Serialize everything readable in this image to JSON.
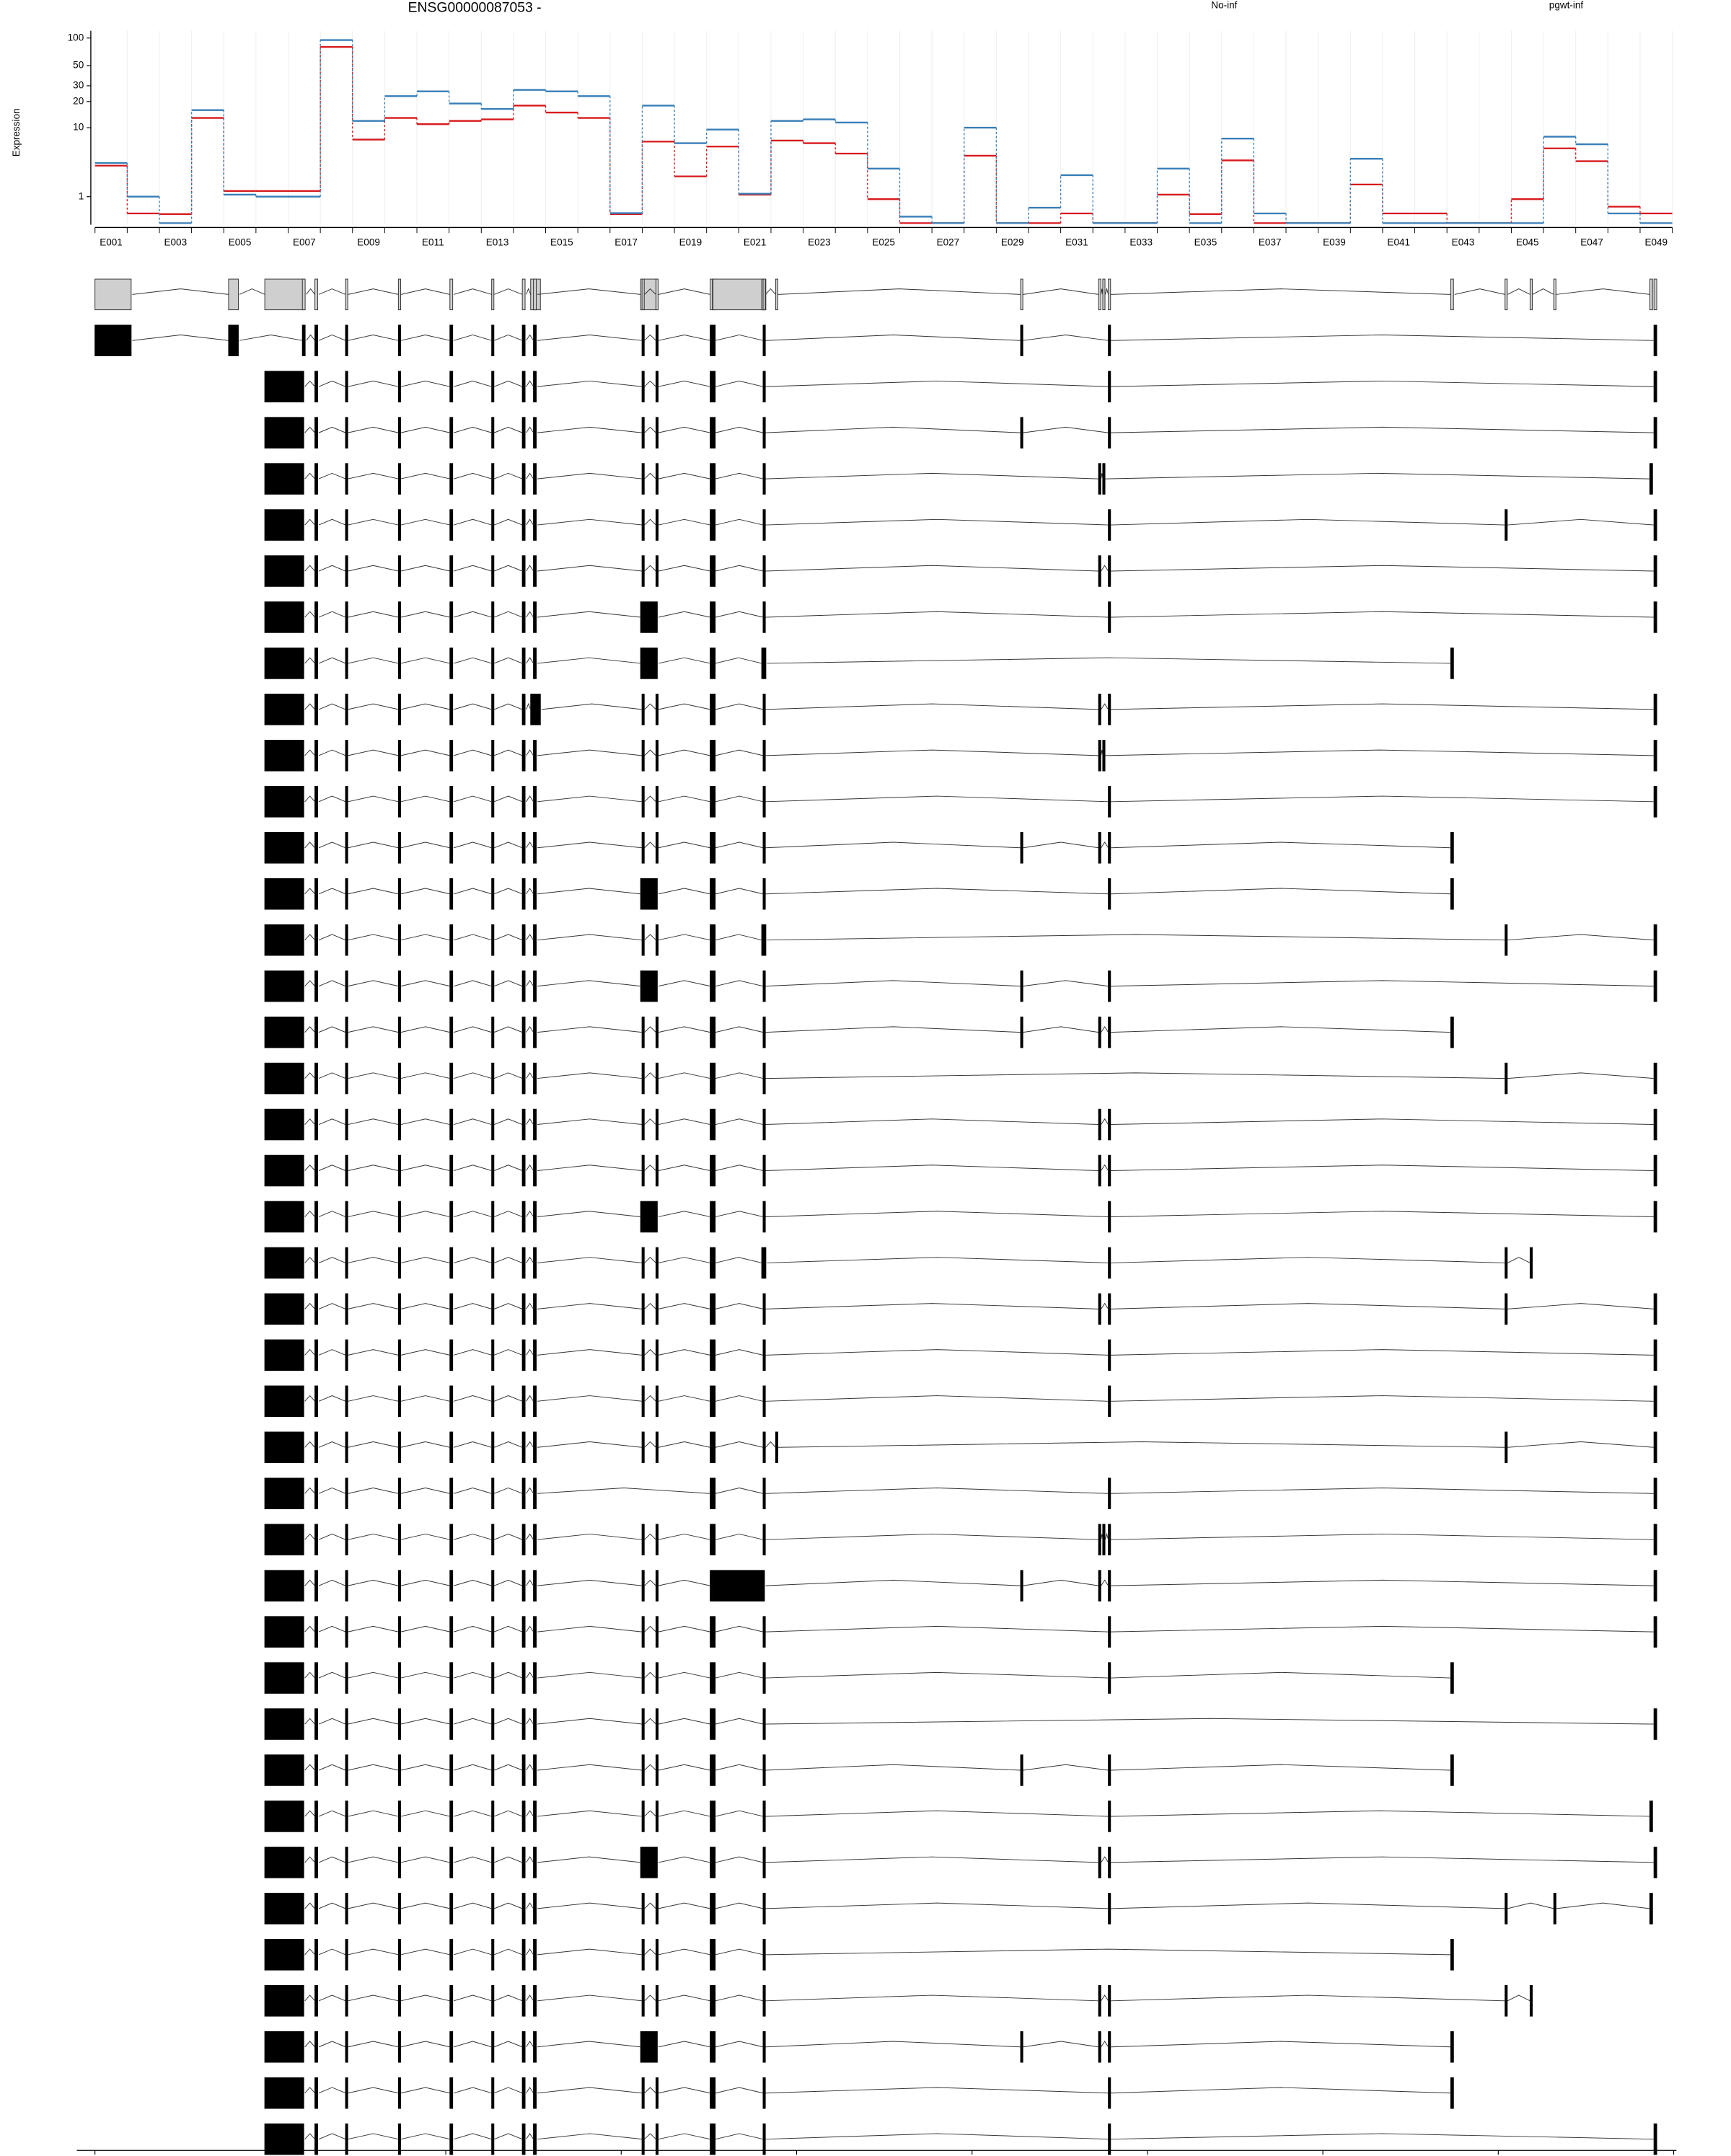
{
  "chart_data": {
    "type": "exon-usage",
    "title": "ENSG00000087053 -",
    "y_label": "Expression",
    "yscale": "log1p",
    "ylim": [
      0,
      120
    ],
    "yticks": [
      1,
      10,
      20,
      30,
      50,
      100
    ],
    "categories": [
      "E001",
      null,
      "E003",
      null,
      "E005",
      null,
      "E007",
      null,
      "E009",
      null,
      "E011",
      null,
      "E013",
      null,
      "E015",
      null,
      "E017",
      null,
      "E019",
      null,
      "E021",
      null,
      "E023",
      null,
      "E025",
      null,
      "E027",
      null,
      "E029",
      null,
      "E031",
      null,
      "E033",
      null,
      "E035",
      null,
      "E037",
      null,
      "E039",
      null,
      "E041",
      null,
      "E043",
      null,
      "E045",
      null,
      "E047",
      null,
      "E049"
    ],
    "series": [
      {
        "name": "No-inf",
        "color": "#d7191c",
        "values": [
          3.3,
          0.32,
          0.3,
          13,
          1.3,
          1.3,
          1.3,
          80,
          7.2,
          13,
          11,
          12,
          12.5,
          18,
          15,
          13,
          0.3,
          6.8,
          2.3,
          5.9,
          1.1,
          7,
          6.5,
          4.8,
          0.88,
          0.04,
          0.04,
          4.5,
          0.04,
          0.04,
          0.32,
          0.04,
          0.04,
          1.1,
          0.3,
          3.9,
          0.04,
          0.04,
          0.04,
          1.7,
          0.32,
          0.32,
          0.04,
          0.04,
          0.88,
          5.6,
          3.8,
          0.56,
          0.32
        ]
      },
      {
        "name": "pgwt-inf",
        "color": "#377eb8",
        "values": [
          3.6,
          1.0,
          0.04,
          16,
          1.1,
          1.0,
          1.0,
          95,
          12,
          23,
          26,
          19,
          16.5,
          27,
          26,
          23,
          0.33,
          18,
          6.5,
          9.5,
          1.15,
          12,
          12.5,
          11.5,
          3,
          0.22,
          0.04,
          10,
          0.04,
          0.52,
          2.4,
          0.04,
          0.04,
          3,
          0.04,
          7.4,
          0.32,
          0.04,
          0.04,
          4.1,
          0.04,
          0.04,
          0.04,
          0.04,
          0.04,
          7.8,
          6.3,
          0.32,
          0.04
        ]
      }
    ],
    "xlim": [
      95820579,
      95925498
    ],
    "xticks": [
      95821766,
      95833271,
      95844777,
      95856282,
      95867788,
      95879293,
      95890799,
      95902304,
      95913810,
      95925315
    ],
    "exons": [
      [
        95821766,
        95824140
      ],
      [
        95830531,
        95831170
      ],
      [
        95832905,
        95835461
      ],
      [
        95835370,
        95835553
      ],
      [
        95836191,
        95836374
      ],
      [
        95838200,
        95838290
      ],
      [
        95841669,
        95841760
      ],
      [
        95845047,
        95845230
      ],
      [
        95847786,
        95847878
      ],
      [
        95849795,
        95849978
      ],
      [
        95850526,
        95850710
      ],
      [
        95850344,
        95850983
      ],
      [
        95857647,
        95857738
      ],
      [
        95858560,
        95858651
      ],
      [
        95857556,
        95858651
      ],
      [
        95862119,
        95862210
      ],
      [
        95862302,
        95862393
      ],
      [
        95862302,
        95865680
      ],
      [
        95865589,
        95865680
      ],
      [
        95865498,
        95865771
      ],
      [
        95866410,
        95866500
      ],
      [
        95882480,
        95882570
      ],
      [
        95887593,
        95887684
      ],
      [
        95887867,
        95887958
      ],
      [
        95888232,
        95888323
      ],
      [
        95910692,
        95910874
      ],
      [
        95914253,
        95914344
      ],
      [
        95915896,
        95915987
      ],
      [
        95917448,
        95917539
      ],
      [
        95923748,
        95923930
      ],
      [
        95924022,
        95924204
      ]
    ],
    "transcripts": [
      [
        0,
        1,
        3,
        4,
        5,
        6,
        7,
        8,
        9,
        10,
        12,
        13,
        15,
        16,
        18,
        21,
        24,
        30
      ],
      [
        2,
        4,
        5,
        6,
        7,
        8,
        9,
        10,
        12,
        13,
        15,
        16,
        18,
        24,
        30
      ],
      [
        2,
        4,
        5,
        6,
        7,
        8,
        9,
        10,
        12,
        13,
        15,
        16,
        18,
        21,
        24,
        30
      ],
      [
        2,
        4,
        5,
        6,
        7,
        8,
        9,
        10,
        12,
        13,
        15,
        16,
        18,
        22,
        23,
        29
      ],
      [
        2,
        4,
        5,
        6,
        7,
        8,
        9,
        10,
        12,
        13,
        15,
        16,
        18,
        24,
        26,
        30
      ],
      [
        2,
        4,
        5,
        6,
        7,
        8,
        9,
        10,
        12,
        13,
        15,
        16,
        18,
        22,
        24,
        30
      ],
      [
        2,
        4,
        5,
        6,
        7,
        8,
        9,
        10,
        14,
        15,
        16,
        18,
        24,
        30
      ],
      [
        2,
        4,
        5,
        6,
        7,
        8,
        9,
        10,
        14,
        15,
        16,
        19,
        25
      ],
      [
        2,
        4,
        5,
        6,
        7,
        8,
        9,
        11,
        12,
        13,
        15,
        16,
        18,
        22,
        24,
        30
      ],
      [
        2,
        4,
        5,
        6,
        7,
        8,
        9,
        10,
        12,
        13,
        15,
        16,
        18,
        22,
        23,
        30
      ],
      [
        2,
        4,
        5,
        6,
        7,
        8,
        9,
        10,
        12,
        13,
        15,
        16,
        18,
        24,
        30
      ],
      [
        2,
        4,
        5,
        6,
        7,
        8,
        9,
        10,
        12,
        13,
        15,
        16,
        18,
        21,
        22,
        24,
        25
      ],
      [
        2,
        4,
        5,
        6,
        7,
        8,
        9,
        10,
        14,
        15,
        16,
        18,
        24,
        25
      ],
      [
        2,
        4,
        5,
        6,
        7,
        8,
        9,
        10,
        12,
        13,
        15,
        16,
        19,
        26,
        30
      ],
      [
        2,
        4,
        5,
        6,
        7,
        8,
        9,
        10,
        14,
        15,
        16,
        18,
        21,
        24,
        30
      ],
      [
        2,
        4,
        5,
        6,
        7,
        8,
        9,
        10,
        12,
        13,
        15,
        16,
        18,
        21,
        22,
        24,
        25
      ],
      [
        2,
        4,
        5,
        6,
        7,
        8,
        9,
        10,
        12,
        13,
        15,
        16,
        18,
        26,
        30
      ],
      [
        2,
        4,
        5,
        6,
        7,
        8,
        9,
        10,
        12,
        13,
        15,
        16,
        18,
        22,
        24,
        30
      ],
      [
        2,
        4,
        5,
        6,
        7,
        8,
        9,
        10,
        12,
        13,
        15,
        16,
        18,
        22,
        24,
        30
      ],
      [
        2,
        4,
        5,
        6,
        7,
        8,
        9,
        10,
        14,
        15,
        16,
        18,
        24,
        30
      ],
      [
        2,
        4,
        5,
        6,
        7,
        8,
        9,
        10,
        12,
        13,
        15,
        16,
        19,
        24,
        26,
        27
      ],
      [
        2,
        4,
        5,
        6,
        7,
        8,
        9,
        10,
        12,
        13,
        15,
        16,
        18,
        22,
        24,
        26,
        30
      ],
      [
        2,
        4,
        5,
        6,
        7,
        8,
        9,
        10,
        12,
        13,
        15,
        16,
        18,
        24,
        30
      ],
      [
        2,
        4,
        5,
        6,
        7,
        8,
        9,
        10,
        12,
        13,
        15,
        16,
        18,
        24,
        30
      ],
      [
        2,
        4,
        5,
        6,
        7,
        8,
        9,
        10,
        12,
        13,
        15,
        16,
        18,
        20,
        26,
        30
      ],
      [
        2,
        4,
        5,
        6,
        7,
        8,
        9,
        10,
        15,
        16,
        18,
        24,
        30
      ],
      [
        2,
        4,
        5,
        6,
        7,
        8,
        9,
        10,
        12,
        13,
        15,
        16,
        18,
        22,
        23,
        24,
        30
      ],
      [
        2,
        4,
        5,
        6,
        7,
        8,
        9,
        10,
        12,
        13,
        15,
        17,
        21,
        22,
        24,
        30
      ],
      [
        2,
        4,
        5,
        6,
        7,
        8,
        9,
        10,
        12,
        13,
        15,
        16,
        18,
        24,
        30
      ],
      [
        2,
        4,
        5,
        6,
        7,
        8,
        9,
        10,
        12,
        13,
        15,
        16,
        18,
        24,
        25
      ],
      [
        2,
        4,
        5,
        6,
        7,
        8,
        9,
        10,
        12,
        13,
        15,
        16,
        18,
        30
      ],
      [
        2,
        4,
        5,
        6,
        7,
        8,
        9,
        10,
        12,
        13,
        15,
        16,
        18,
        21,
        24,
        25
      ],
      [
        2,
        4,
        5,
        6,
        7,
        8,
        9,
        10,
        12,
        13,
        15,
        16,
        18,
        24,
        29
      ],
      [
        2,
        4,
        5,
        6,
        7,
        8,
        9,
        10,
        14,
        15,
        16,
        18,
        22,
        24,
        30
      ],
      [
        2,
        4,
        5,
        6,
        7,
        8,
        9,
        10,
        12,
        13,
        15,
        16,
        18,
        24,
        26,
        28,
        29
      ],
      [
        2,
        4,
        5,
        6,
        7,
        8,
        9,
        10,
        12,
        13,
        15,
        16,
        18,
        25
      ],
      [
        2,
        4,
        5,
        6,
        7,
        8,
        9,
        10,
        12,
        13,
        15,
        16,
        18,
        22,
        24,
        26,
        27
      ],
      [
        2,
        4,
        5,
        6,
        7,
        8,
        9,
        10,
        14,
        15,
        16,
        18,
        21,
        22,
        24,
        25
      ],
      [
        2,
        4,
        5,
        6,
        7,
        8,
        9,
        10,
        12,
        13,
        15,
        16,
        18,
        24,
        25
      ],
      [
        2,
        4,
        5,
        6,
        7,
        8,
        9,
        10,
        12,
        13,
        15,
        16,
        18,
        24,
        30
      ]
    ]
  }
}
